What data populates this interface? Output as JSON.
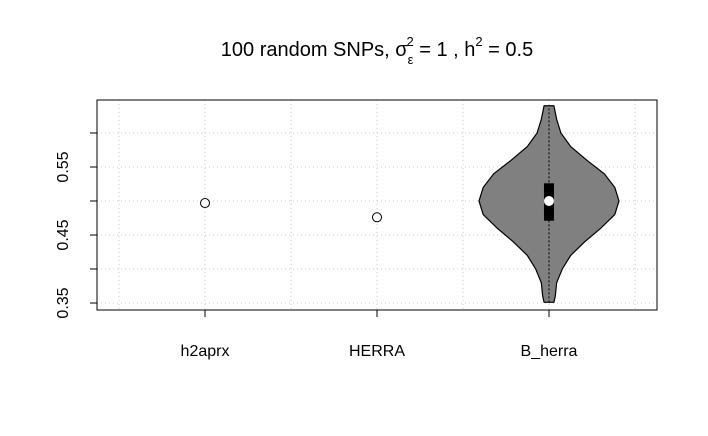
{
  "chart_data": {
    "type": "violin",
    "title": [
      "100 random SNPs, σ",
      "ε",
      "2",
      " = 1 , h",
      "2",
      " = 0.5"
    ],
    "categories": [
      "h2aprx",
      "HERRA",
      "B_herra"
    ],
    "points": [
      0.497,
      0.476,
      null
    ],
    "violin": {
      "category": 2,
      "color": "#808080",
      "min": 0.351,
      "q1": 0.471,
      "median": 0.5,
      "q3": 0.526,
      "max": 0.64,
      "y": [
        0.351,
        0.36,
        0.38,
        0.4,
        0.42,
        0.44,
        0.46,
        0.48,
        0.5,
        0.52,
        0.54,
        0.56,
        0.58,
        0.6,
        0.62,
        0.64
      ],
      "density": [
        0.07,
        0.09,
        0.11,
        0.19,
        0.31,
        0.51,
        0.74,
        0.94,
        1.0,
        0.94,
        0.79,
        0.54,
        0.31,
        0.17,
        0.11,
        0.07
      ]
    },
    "xlim": [
      0.372,
      3.628
    ],
    "x_grid": [
      0.5,
      1,
      1.5,
      2,
      2.5,
      3,
      3.5
    ],
    "ylim": [
      0.3397,
      0.6485
    ],
    "yticks": [
      0.35,
      0.45,
      0.55
    ],
    "minor_yticks": [
      0.4,
      0.5,
      0.6
    ],
    "grid": true
  }
}
